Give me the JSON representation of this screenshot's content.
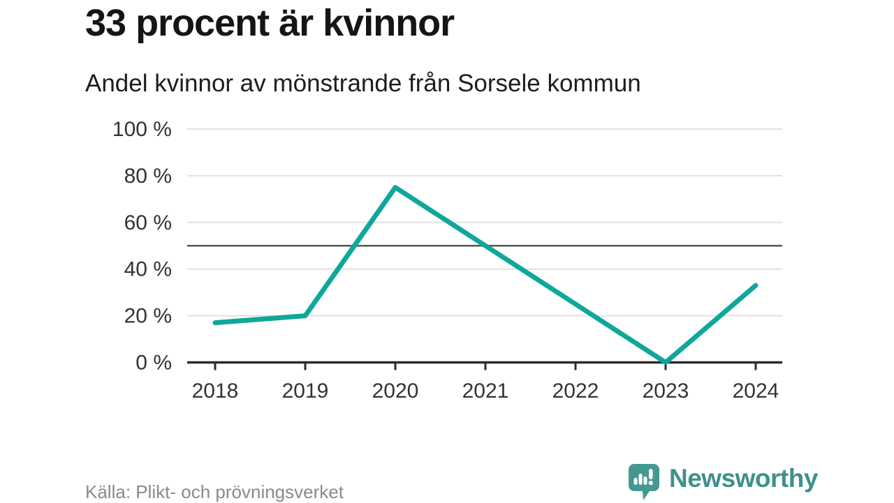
{
  "header": {
    "title": "33 procent är kvinnor",
    "subtitle": "Andel kvinnor av mönstrande från Sorsele kommun"
  },
  "footer": {
    "source": "Källa: Plikt- och prövningsverket",
    "brand": "Newsworthy",
    "logo_icon": "newsworthy-speech-bubble-bar-chart-exclamation"
  },
  "colors": {
    "line": "#0FA79C",
    "grid": "#E1E1E1",
    "ref_line": "#555555",
    "axis": "#2B2B2B",
    "title_text": "#151515",
    "tick_text": "#333333",
    "source_text": "#8A8A8A",
    "brand_teal": "#3E908E",
    "logo_bubble": "#459792"
  },
  "chart_data": {
    "type": "line",
    "x": [
      2018,
      2019,
      2020,
      2021,
      2022,
      2023,
      2024
    ],
    "series": [
      {
        "name": "Andel kvinnor av mönstrande",
        "values": [
          17,
          20,
          75,
          50,
          25,
          0,
          33
        ]
      }
    ],
    "title": "33 procent är kvinnor",
    "subtitle": "Andel kvinnor av mönstrande från Sorsele kommun",
    "xlabel": "",
    "ylabel": "",
    "ylim": [
      0,
      100
    ],
    "yticks": [
      0,
      20,
      40,
      60,
      80,
      100
    ],
    "ytick_suffix": " %",
    "reference_line": 50,
    "grid": true,
    "legend": false,
    "source": "Källa: Plikt- och prövningsverket"
  }
}
